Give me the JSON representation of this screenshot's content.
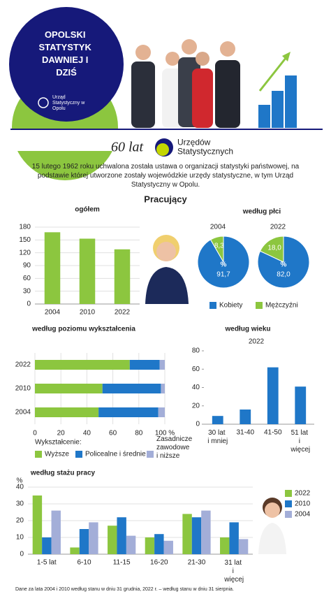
{
  "header": {
    "title": "OPOLSKI STATYSTYK DAWNIEJ I DZIŚ",
    "logo": "Urząd Statystyczny w Opolu",
    "anniversary": "60 lat",
    "anniversary_text": "Urzędów Statystycznych"
  },
  "intro": "15 lutego 1962 roku uchwalona została ustawa o organizacji statystyki państwowej, na podstawie której utworzone zostały wojewódzkie urzędy statystyczne, w tym Urząd Statystyczny w Opolu.",
  "section_title": "Pracujący",
  "chart_data": [
    {
      "type": "bar",
      "title": "ogółem",
      "categories": [
        "2004",
        "2010",
        "2022"
      ],
      "values": [
        168,
        153,
        128
      ],
      "color": "#8cc63f",
      "ylim": [
        0,
        180
      ],
      "yticks": [
        0,
        30,
        60,
        90,
        120,
        150,
        180
      ],
      "grid": true
    },
    {
      "type": "pie",
      "title": "według płci",
      "categories": [
        "Kobiety",
        "Mężczyźni"
      ],
      "colors": [
        "#1f77c8",
        "#8cc63f"
      ],
      "unit": "%",
      "pies": [
        {
          "label": "2004",
          "values": [
            91.7,
            8.3
          ],
          "value_labels": [
            "91,7",
            "8,3"
          ]
        },
        {
          "label": "2022",
          "values": [
            82.0,
            18.0
          ],
          "value_labels": [
            "82,0",
            "18,0"
          ]
        }
      ]
    },
    {
      "type": "hbar_stacked",
      "title": "według poziomu wykształcenia",
      "categories": [
        "2022",
        "2010",
        "2004"
      ],
      "legend_title": "Wykształcenie:",
      "series": [
        {
          "name": "Wyższe",
          "color": "#8cc63f",
          "values": [
            73,
            52,
            49
          ]
        },
        {
          "name": "Policealne i średnie",
          "color": "#1f77c8",
          "values": [
            23,
            45,
            46
          ]
        },
        {
          "name": "Zasadnicze zawodowe i niższe",
          "color": "#a3aed8",
          "values": [
            4,
            3,
            5
          ]
        }
      ],
      "xlim": [
        0,
        100
      ],
      "xticks": [
        0,
        20,
        40,
        60,
        80,
        {
          "value": 100,
          "label": "100 %"
        }
      ],
      "grid": true
    },
    {
      "type": "bar",
      "title": "według wieku",
      "subtitle": "2022",
      "categories": [
        "30 lat i mniej",
        "31-40",
        "41-50",
        "51 lat i więcej"
      ],
      "values": [
        9,
        16,
        62,
        41
      ],
      "color": "#1f77c8",
      "ylim": [
        0,
        80
      ],
      "yticks": [
        0,
        20,
        40,
        60,
        80
      ],
      "grid": false
    },
    {
      "type": "grouped_bar",
      "title": "według stażu pracy",
      "ylabel": "%",
      "categories": [
        "1-5 lat",
        "6-10",
        "11-15",
        "16-20",
        "21-30",
        "31 lat i więcej"
      ],
      "series": [
        {
          "name": "2022",
          "color": "#8cc63f",
          "values": [
            35,
            4,
            17,
            10,
            24,
            10
          ]
        },
        {
          "name": "2010",
          "color": "#1f77c8",
          "values": [
            10,
            15,
            22,
            12,
            22,
            19
          ]
        },
        {
          "name": "2004",
          "color": "#a3aed8",
          "values": [
            26,
            19,
            11,
            8,
            26,
            9
          ]
        }
      ],
      "ylim": [
        0,
        40
      ],
      "yticks": [
        0,
        10,
        20,
        30,
        40
      ],
      "grid": true
    }
  ],
  "footnote": "Dane za lata 2004 i 2010 według stanu w dniu 31 grudnia, 2022 r. – według stanu w dniu 31 sierpnia."
}
